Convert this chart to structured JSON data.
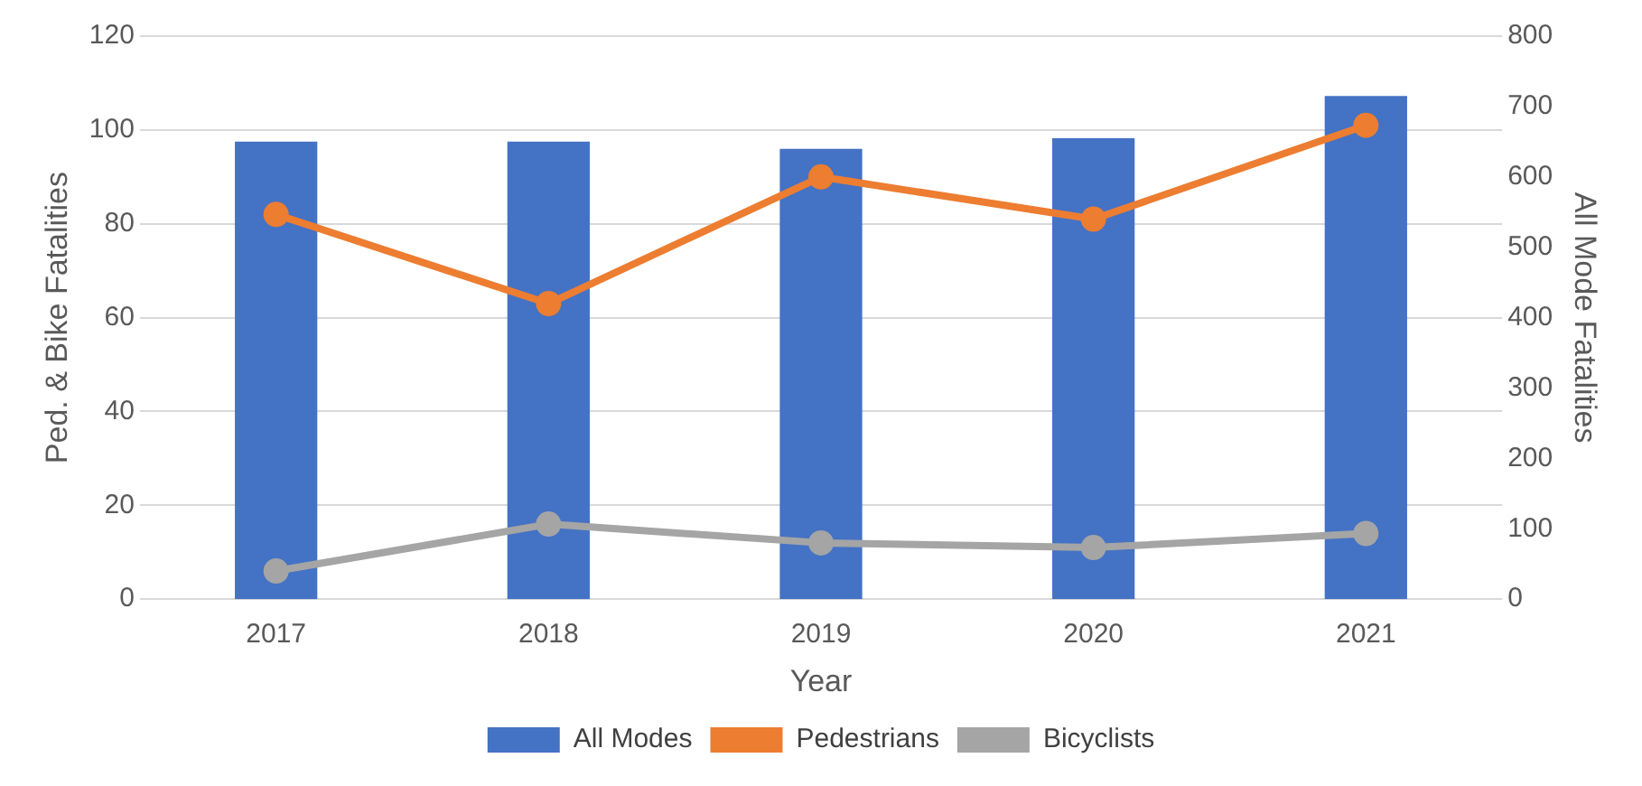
{
  "chart_data": {
    "type": "bar",
    "xlabel": "Year",
    "ylabel": "Ped. & Bike Fatalities",
    "y2label": "All Mode Fatalities",
    "categories": [
      "2017",
      "2018",
      "2019",
      "2020",
      "2021"
    ],
    "series": [
      {
        "name": "All Modes",
        "axis": "y2",
        "color": "#4472c4",
        "values": [
          650,
          650,
          640,
          655,
          715
        ]
      },
      {
        "name": "Pedestrians",
        "type": "line",
        "color": "#ed7d31",
        "values": [
          82,
          63,
          90,
          81,
          101
        ]
      },
      {
        "name": "Bicyclists",
        "type": "line",
        "color": "#a5a5a5",
        "values": [
          6,
          16,
          12,
          11,
          14
        ]
      }
    ],
    "ylim": [
      0,
      120
    ],
    "yticks": [
      0,
      20,
      40,
      60,
      80,
      100,
      120
    ],
    "y2lim": [
      0,
      800
    ],
    "y2ticks": [
      0,
      100,
      200,
      300,
      400,
      500,
      600,
      700,
      800
    ],
    "grid": "y",
    "legend": "bottom",
    "marker": "circle",
    "line_style": "solid"
  }
}
